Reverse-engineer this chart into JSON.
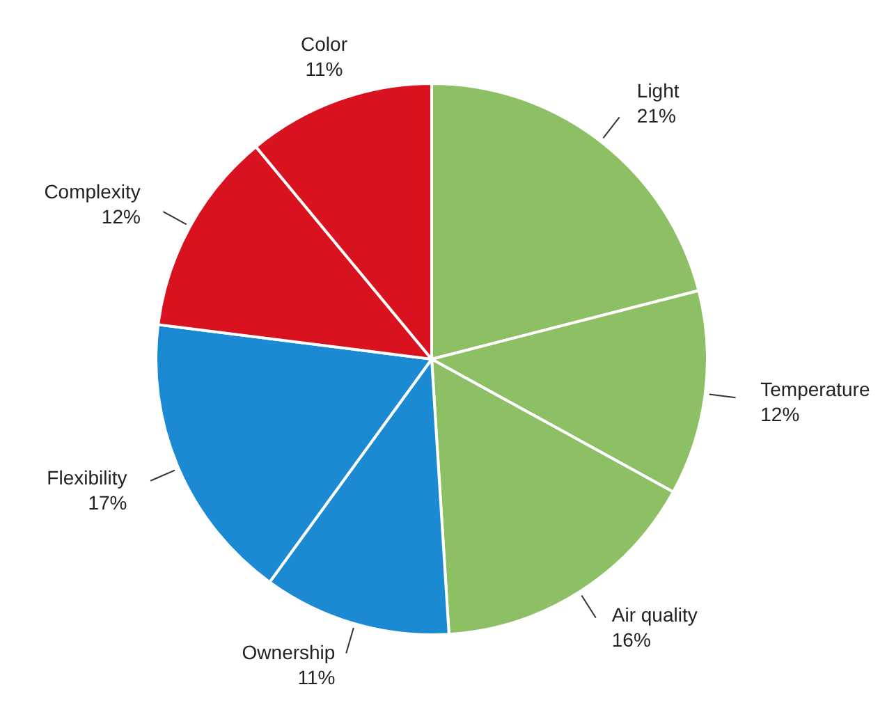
{
  "chart_data": {
    "type": "pie",
    "categories": [
      "Light",
      "Temperature",
      "Air quality",
      "Ownership",
      "Flexibility",
      "Complexity",
      "Color"
    ],
    "values": [
      21,
      12,
      16,
      11,
      17,
      12,
      11
    ],
    "value_labels": [
      "21%",
      "12%",
      "16%",
      "11%",
      "17%",
      "12%",
      "11%"
    ],
    "colors": [
      "#8dc064",
      "#8dc064",
      "#8dc064",
      "#1b8ad3",
      "#1b8ad3",
      "#d9121f",
      "#d9121f"
    ]
  }
}
